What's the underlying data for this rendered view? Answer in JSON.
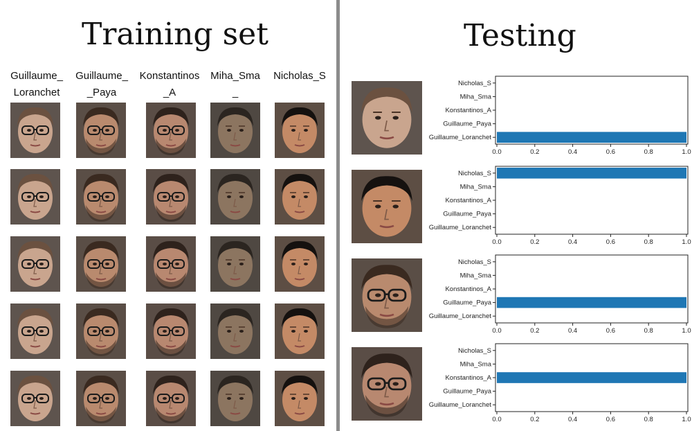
{
  "training": {
    "title": "Training set",
    "columns": [
      {
        "label": "Guillaume_\nLoranchet",
        "skin": "#c9a58e",
        "hair": "#6b5140",
        "glasses": true,
        "beard": false
      },
      {
        "label": "Guillaume_\n_Paya",
        "skin": "#b98a6e",
        "hair": "#3a2a20",
        "glasses": true,
        "beard": true
      },
      {
        "label": "Konstantinos\n_A",
        "skin": "#b88870",
        "hair": "#2e221c",
        "glasses": true,
        "beard": true
      },
      {
        "label": "Miha_Sma\n_",
        "skin": "#8c7560",
        "hair": "#2b2520",
        "glasses": false,
        "beard": false
      },
      {
        "label": "Nicholas_S",
        "skin": "#c48a66",
        "hair": "#15110f",
        "glasses": false,
        "beard": false
      }
    ],
    "rows": 5
  },
  "testing": {
    "title": "Testing",
    "faces": [
      {
        "skin": "#c9a58e",
        "hair": "#6b5140",
        "glasses": false,
        "beard": false
      },
      {
        "skin": "#c48a66",
        "hair": "#15110f",
        "glasses": false,
        "beard": false
      },
      {
        "skin": "#b98a6e",
        "hair": "#3a2a20",
        "glasses": true,
        "beard": true
      },
      {
        "skin": "#b88870",
        "hair": "#2e221c",
        "glasses": true,
        "beard": true
      }
    ]
  },
  "chart_data": [
    {
      "type": "bar",
      "orientation": "horizontal",
      "categories": [
        "Guillaume_Loranchet",
        "Guillaume_Paya",
        "Konstantinos_A",
        "Miha_Sma",
        "Nicholas_S"
      ],
      "values": [
        1.0,
        0,
        0,
        0,
        0
      ],
      "xlim": [
        0.0,
        1.0
      ],
      "xticks": [
        "0.0",
        "0.2",
        "0.4",
        "0.6",
        "0.8",
        "1.0"
      ],
      "color": "#1f77b4"
    },
    {
      "type": "bar",
      "orientation": "horizontal",
      "categories": [
        "Guillaume_Loranchet",
        "Guillaume_Paya",
        "Konstantinos_A",
        "Miha_Sma",
        "Nicholas_S"
      ],
      "values": [
        0,
        0,
        0,
        0,
        1.0
      ],
      "xlim": [
        0.0,
        1.0
      ],
      "xticks": [
        "0.0",
        "0.2",
        "0.4",
        "0.6",
        "0.8",
        "1.0"
      ],
      "color": "#1f77b4"
    },
    {
      "type": "bar",
      "orientation": "horizontal",
      "categories": [
        "Guillaume_Loranchet",
        "Guillaume_Paya",
        "Konstantinos_A",
        "Miha_Sma",
        "Nicholas_S"
      ],
      "values": [
        0,
        1.0,
        0,
        0,
        0
      ],
      "xlim": [
        0.0,
        1.0
      ],
      "xticks": [
        "0.0",
        "0.2",
        "0.4",
        "0.6",
        "0.8",
        "1.0"
      ],
      "color": "#1f77b4"
    },
    {
      "type": "bar",
      "orientation": "horizontal",
      "categories": [
        "Guillaume_Loranchet",
        "Guillaume_Paya",
        "Konstantinos_A",
        "Miha_Sma",
        "Nicholas_S"
      ],
      "values": [
        0,
        0,
        1.0,
        0,
        0
      ],
      "xlim": [
        0.0,
        1.0
      ],
      "xticks": [
        "0.0",
        "0.2",
        "0.4",
        "0.6",
        "0.8",
        "1.0"
      ],
      "color": "#1f77b4"
    }
  ]
}
